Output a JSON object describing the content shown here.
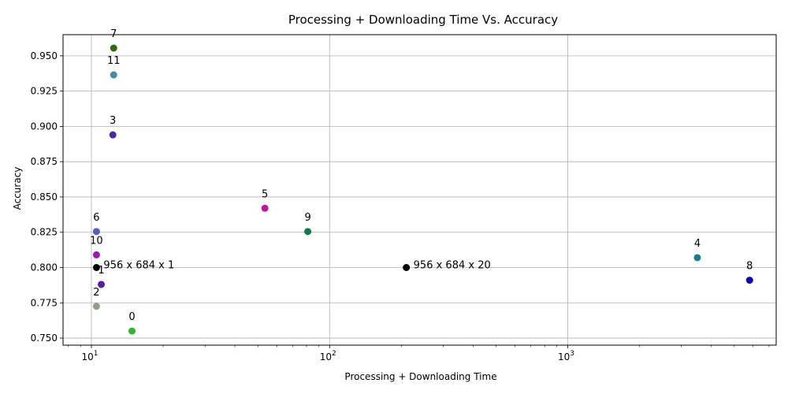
{
  "chart_data": {
    "type": "scatter",
    "title": "Processing + Downloading Time Vs. Accuracy",
    "xlabel": "Processing + Downloading Time",
    "ylabel": "Accuracy",
    "x_scale": "log",
    "xlim": [
      7.6,
      7500
    ],
    "ylim": [
      0.745,
      0.965
    ],
    "x_major_ticks": [
      10,
      100,
      1000
    ],
    "x_tick_labels": [
      "10^1",
      "10^2",
      "10^3"
    ],
    "y_ticks": [
      0.75,
      0.775,
      0.8,
      0.825,
      0.85,
      0.875,
      0.9,
      0.925,
      0.95
    ],
    "y_tick_labels": [
      "0.750",
      "0.775",
      "0.800",
      "0.825",
      "0.850",
      "0.875",
      "0.900",
      "0.925",
      "0.950"
    ],
    "grid": true,
    "points": [
      {
        "label": "0",
        "x": 14.8,
        "y": 0.755,
        "color": "#2db82d",
        "label_pos": "above"
      },
      {
        "label": "1",
        "x": 11.0,
        "y": 0.788,
        "color": "#5a1e9a",
        "label_pos": "above"
      },
      {
        "label": "2",
        "x": 10.5,
        "y": 0.7725,
        "color": "#8f9e86",
        "label_pos": "above"
      },
      {
        "label": "3",
        "x": 12.3,
        "y": 0.894,
        "color": "#4a2a9e",
        "label_pos": "above"
      },
      {
        "label": "4",
        "x": 3500,
        "y": 0.807,
        "color": "#137e8c",
        "label_pos": "above"
      },
      {
        "label": "5",
        "x": 53.5,
        "y": 0.842,
        "color": "#c0189a",
        "label_pos": "above"
      },
      {
        "label": "6",
        "x": 10.5,
        "y": 0.8255,
        "color": "#5a5ac0",
        "label_pos": "above"
      },
      {
        "label": "7",
        "x": 12.4,
        "y": 0.9555,
        "color": "#2a6e10",
        "label_pos": "above"
      },
      {
        "label": "8",
        "x": 5800,
        "y": 0.791,
        "color": "#0a0ab0",
        "label_pos": "above"
      },
      {
        "label": "9",
        "x": 81,
        "y": 0.8255,
        "color": "#0e7a4e",
        "label_pos": "above"
      },
      {
        "label": "10",
        "x": 10.5,
        "y": 0.809,
        "color": "#9a1ab0",
        "label_pos": "above"
      },
      {
        "label": "11",
        "x": 12.4,
        "y": 0.9365,
        "color": "#3e8ea0",
        "label_pos": "above"
      },
      {
        "label": "956 x 684 x 1",
        "x": 10.5,
        "y": 0.8,
        "color": "#000000",
        "label_pos": "right"
      },
      {
        "label": "956 x 684 x 20",
        "x": 210,
        "y": 0.8,
        "color": "#000000",
        "label_pos": "right"
      }
    ]
  }
}
